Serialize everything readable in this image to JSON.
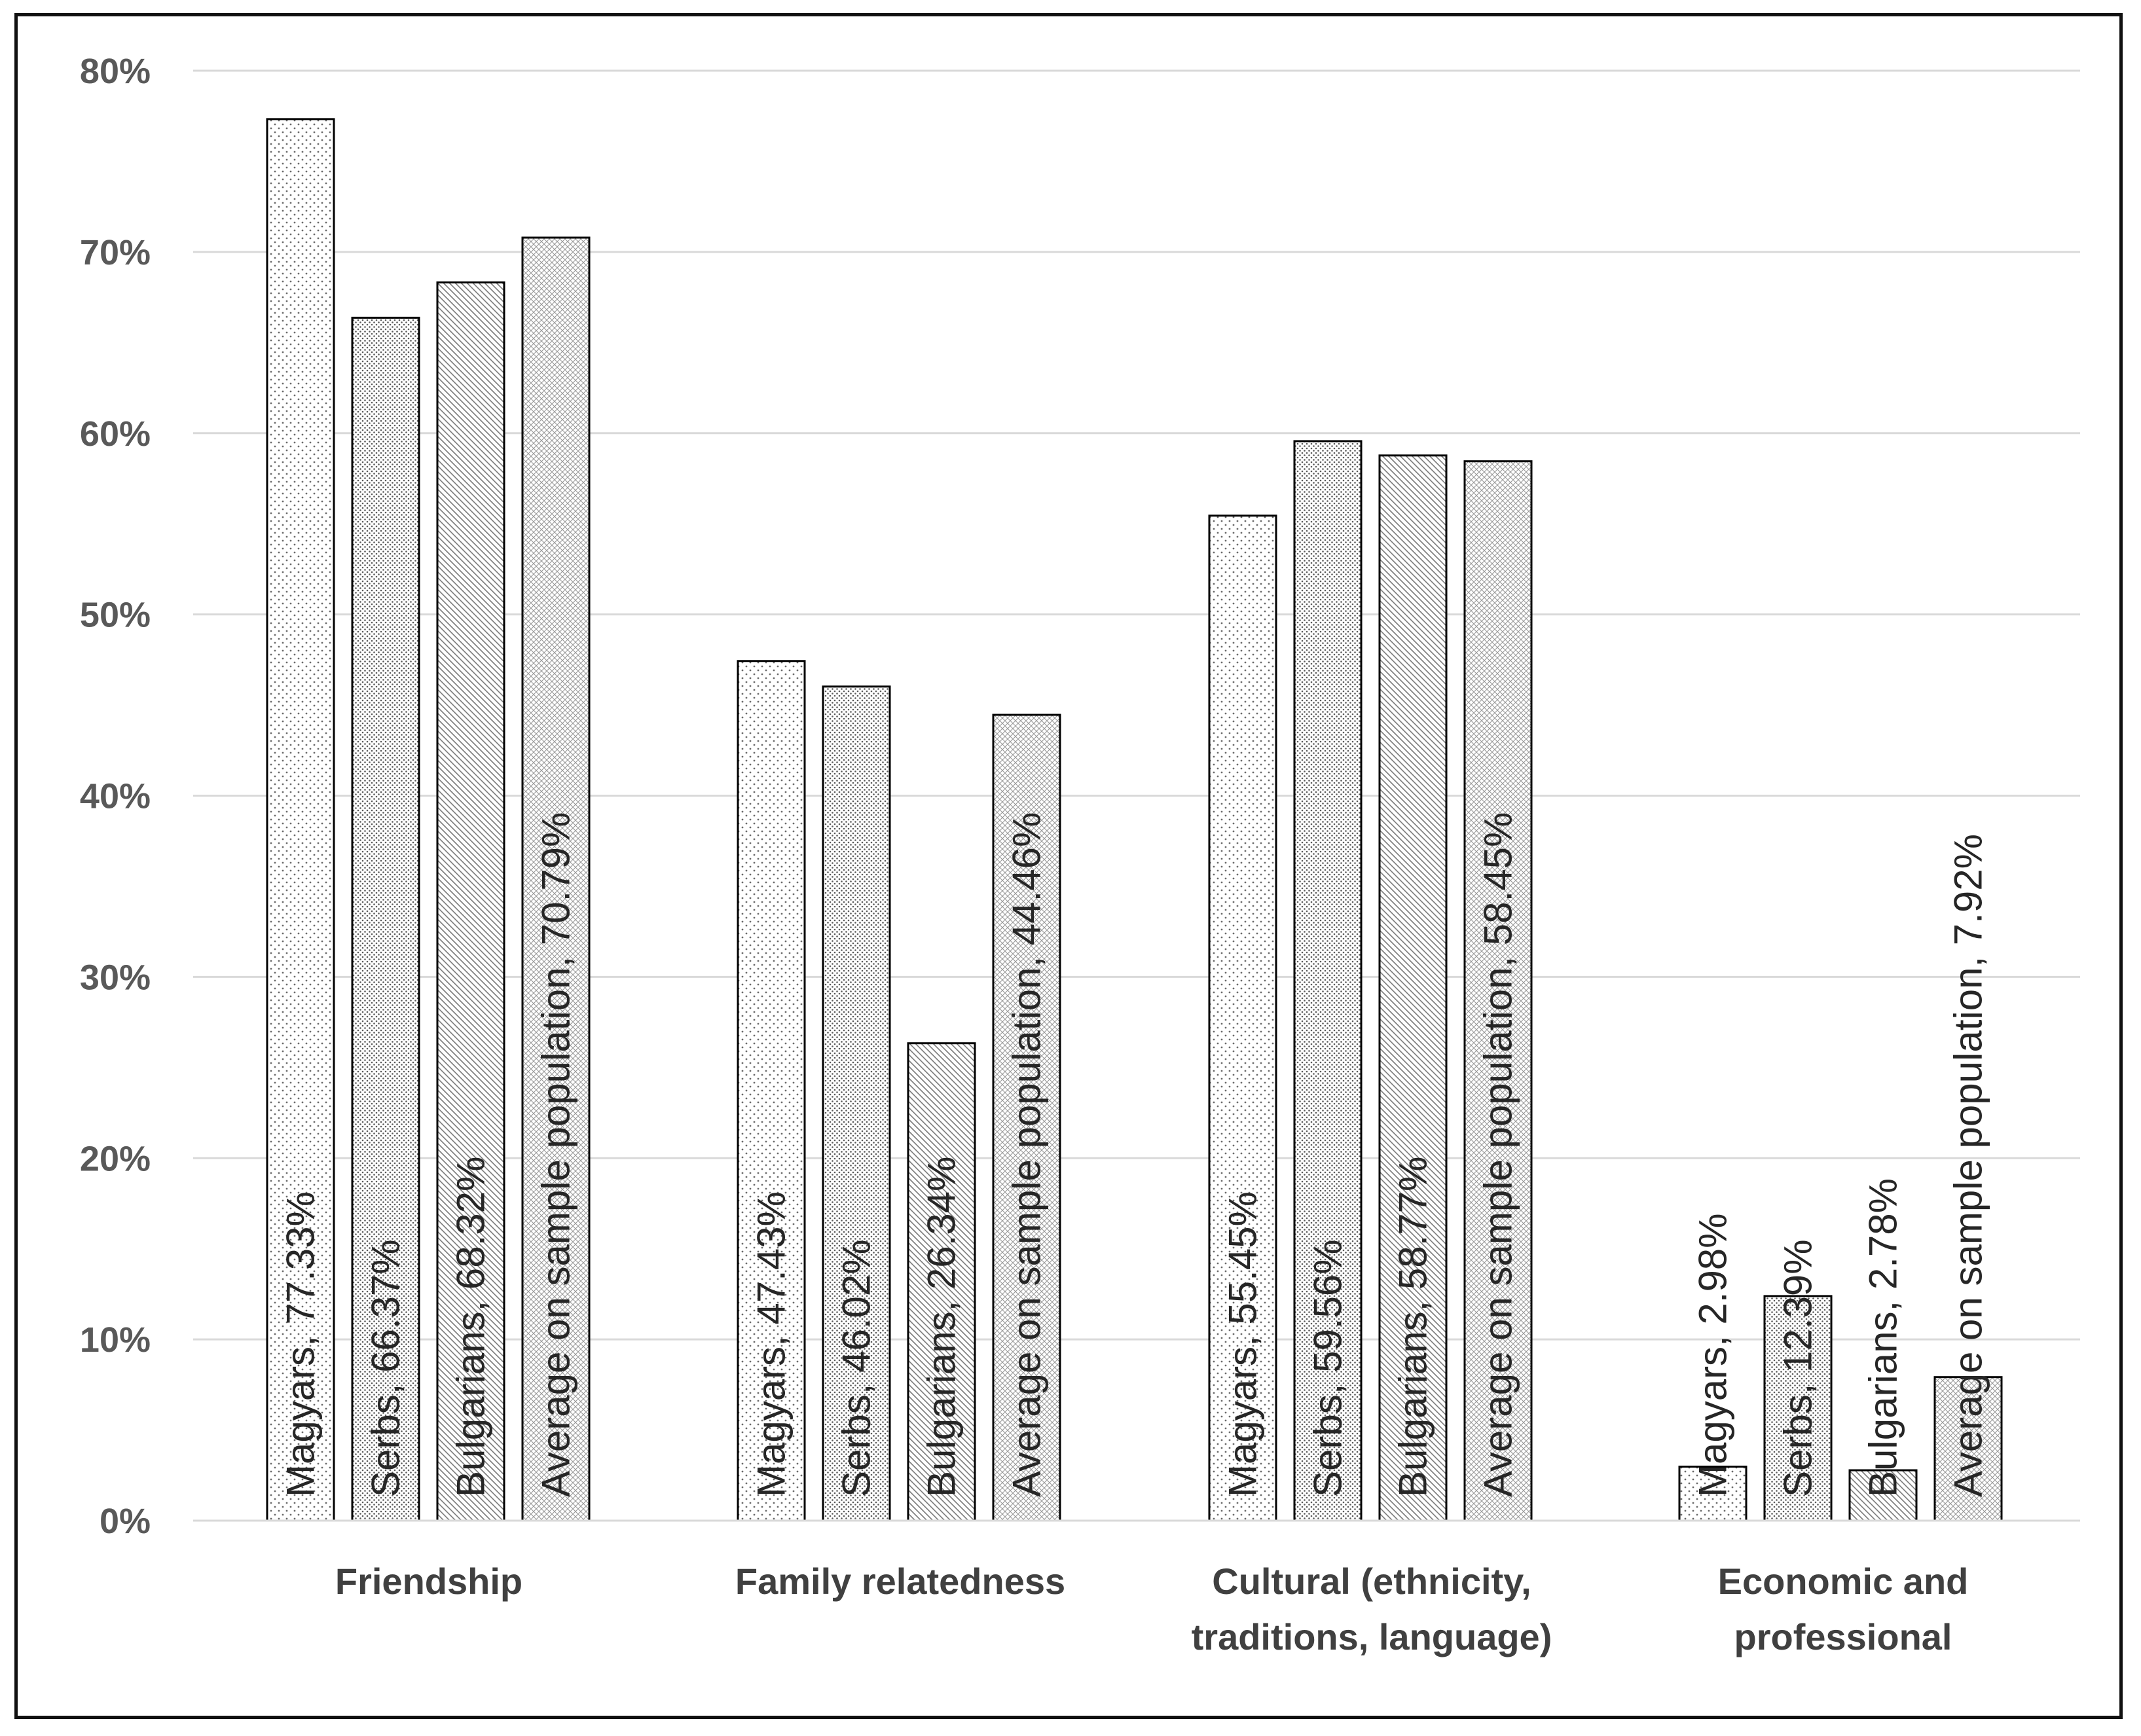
{
  "chart_data": {
    "type": "bar",
    "title": "",
    "xlabel": "",
    "ylabel": "",
    "ylim": [
      0,
      80
    ],
    "yticks": [
      "0%",
      "10%",
      "20%",
      "30%",
      "40%",
      "50%",
      "60%",
      "70%",
      "80%"
    ],
    "grid": true,
    "categories": [
      [
        "Friendship"
      ],
      [
        "Family relatedness"
      ],
      [
        "Cultural (ethnicity,",
        "traditions, language)"
      ],
      [
        "Economic and",
        "professional"
      ]
    ],
    "series": [
      {
        "name": "Magyars",
        "values": [
          77.33,
          47.43,
          55.45,
          2.98
        ],
        "labels": [
          "Magyars, 77.33%",
          "Magyars, 47.43%",
          "Magyars, 55.45%",
          "Magyars, 2.98%"
        ]
      },
      {
        "name": "Serbs",
        "values": [
          66.37,
          46.02,
          59.56,
          12.39
        ],
        "labels": [
          "Serbs, 66.37%",
          "Serbs, 46.02%",
          "Serbs, 59.56%",
          "Serbs, 12.39%"
        ]
      },
      {
        "name": "Bulgarians",
        "values": [
          68.32,
          26.34,
          58.77,
          2.78
        ],
        "labels": [
          "Bulgarians, 68.32%",
          "Bulgarians, 26.34%",
          "Bulgarians, 58.77%",
          "Bulgarians, 2.78%"
        ]
      },
      {
        "name": "Average on sample population",
        "values": [
          70.79,
          44.46,
          58.45,
          7.92
        ],
        "labels": [
          "Average on sample population, 70.79%",
          "Average on sample population, 44.46%",
          "Average on sample population, 58.45%",
          "Average on sample population, 7.92%"
        ]
      }
    ],
    "colors": {
      "gridline": "#d9d9d9",
      "bar_edge": "#000000",
      "tick_text": "#595959",
      "category_text": "#404040",
      "label_text": "#262626"
    }
  }
}
